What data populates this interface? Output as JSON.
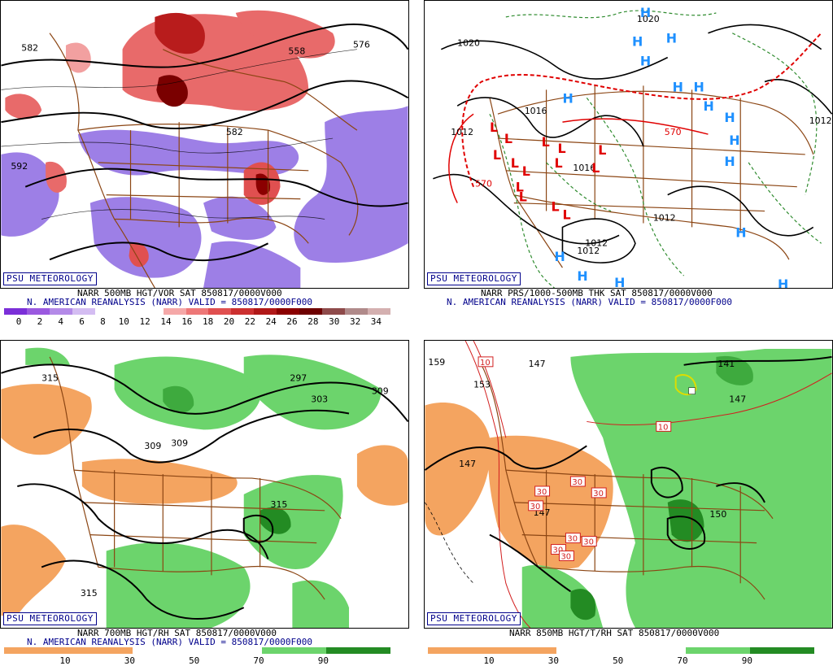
{
  "panels": [
    {
      "id": "vor",
      "logo": "PSU METEOROLOGY",
      "title": "NARR 500MB HGT/VOR SAT 850817/0000V000",
      "subtitle": "N. AMERICAN REANALYSIS (NARR) VALID = 850817/0000F000",
      "colorbar_ticks": [
        "0",
        "2",
        "4",
        "6",
        "8",
        "10",
        "12",
        "14",
        "16",
        "18",
        "20",
        "22",
        "24",
        "26",
        "28",
        "30",
        "32",
        "34"
      ],
      "colorbar_colors": [
        "#7b2fd8",
        "#9b59e0",
        "#b48ae8",
        "#d4bdf2",
        "#ffffff",
        "#ffffff",
        "#ffffff",
        "#f5a8a8",
        "#ee7878",
        "#e05050",
        "#cc3030",
        "#b01818",
        "#8b0000",
        "#6e0000",
        "#8e4a4a",
        "#b08a8a",
        "#d4b0b0"
      ],
      "contour_labels": [
        "582",
        "592",
        "558",
        "576",
        "582"
      ]
    },
    {
      "id": "prs",
      "logo": "PSU METEOROLOGY",
      "title": "NARR PRS/1000-500MB THK SAT 850817/0000V000",
      "subtitle": "N. AMERICAN REANALYSIS (NARR) VALID = 850817/0000F000",
      "contour_labels": [
        "1020",
        "1016",
        "1012",
        "1016",
        "1012",
        "1012",
        "1012",
        "1012",
        "1020",
        "570",
        "570"
      ],
      "highs": [
        "H",
        "H",
        "H",
        "H",
        "H",
        "H",
        "H",
        "H",
        "H",
        "H",
        "H",
        "H",
        "H",
        "H",
        "H",
        "H"
      ],
      "lows": [
        "L",
        "L",
        "L",
        "L",
        "L",
        "L",
        "L",
        "L",
        "L",
        "L",
        "L",
        "L",
        "L",
        "L"
      ]
    },
    {
      "id": "rh700",
      "logo": "PSU METEOROLOGY",
      "title": "NARR 700MB HGT/RH SAT 850817/0000V000",
      "subtitle": "N. AMERICAN REANALYSIS (NARR) VALID = 850817/0000F000",
      "colorbar_ticks": [
        "10",
        "30",
        "50",
        "70",
        "90"
      ],
      "colorbar_colors": [
        "#f4a460",
        "#f4a460",
        "#ffffff",
        "#ffffff",
        "#6cd46c",
        "#238b23"
      ],
      "contour_labels": [
        "315",
        "297",
        "303",
        "309",
        "309",
        "309",
        "315",
        "315"
      ]
    },
    {
      "id": "t850",
      "logo": "PSU METEOROLOGY",
      "title": "NARR 850MB HGT/T/RH SAT 850817/0000V000",
      "colorbar_ticks": [
        "10",
        "30",
        "50",
        "70",
        "90"
      ],
      "colorbar_colors": [
        "#f4a460",
        "#f4a460",
        "#ffffff",
        "#ffffff",
        "#6cd46c",
        "#238b23"
      ],
      "contour_labels": [
        "159",
        "153",
        "147",
        "147",
        "141",
        "147",
        "147",
        "150",
        "10",
        "10"
      ],
      "temp_boxes": [
        "30",
        "30",
        "30",
        "30",
        "30",
        "30",
        "30",
        "30"
      ]
    }
  ]
}
